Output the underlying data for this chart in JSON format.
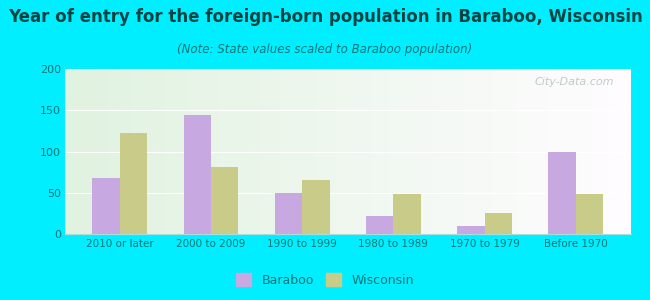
{
  "title": "Year of entry for the foreign-born population in Baraboo, Wisconsin",
  "subtitle": "(Note: State values scaled to Baraboo population)",
  "categories": [
    "2010 or later",
    "2000 to 2009",
    "1990 to 1999",
    "1980 to 1989",
    "1970 to 1979",
    "Before 1970"
  ],
  "baraboo_values": [
    68,
    144,
    50,
    22,
    10,
    100
  ],
  "wisconsin_values": [
    123,
    81,
    66,
    48,
    25,
    48
  ],
  "baraboo_color": "#c8a8e0",
  "wisconsin_color": "#c8cc88",
  "background_outer": "#00eeff",
  "ylim": [
    0,
    200
  ],
  "yticks": [
    0,
    50,
    100,
    150,
    200
  ],
  "title_fontsize": 12,
  "subtitle_fontsize": 8.5,
  "watermark": "City-Data.com",
  "bar_width": 0.3,
  "legend_labels": [
    "Baraboo",
    "Wisconsin"
  ]
}
